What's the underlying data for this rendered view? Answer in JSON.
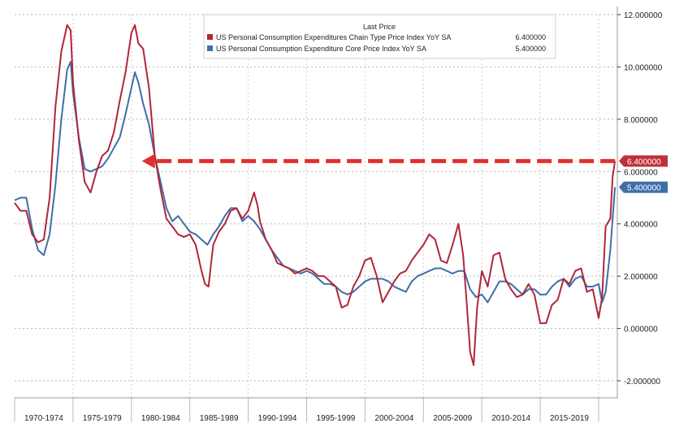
{
  "chart_data": {
    "type": "line",
    "title": "Last Price",
    "xlabel": "",
    "ylabel": "",
    "ylim": [
      -2,
      12
    ],
    "xlim": [
      1970,
      2021.6
    ],
    "grid": true,
    "legend_position": "top-right",
    "y_ticks": [
      {
        "value": 12,
        "label": "12.000000"
      },
      {
        "value": 10,
        "label": "10.000000"
      },
      {
        "value": 8,
        "label": "8.000000"
      },
      {
        "value": 6,
        "label": "6.000000"
      },
      {
        "value": 4,
        "label": "4.000000"
      },
      {
        "value": 2,
        "label": "2.000000"
      },
      {
        "value": 0,
        "label": "0.000000"
      },
      {
        "value": -2,
        "label": "-2.000000"
      }
    ],
    "x_categories": [
      "1970-1974",
      "1975-1979",
      "1980-1984",
      "1985-1989",
      "1990-1994",
      "1995-1999",
      "2000-2004",
      "2005-2009",
      "2010-2014",
      "2015-2019"
    ],
    "x_category_starts": [
      1970,
      1975,
      1980,
      1985,
      1990,
      1995,
      2000,
      2005,
      2010,
      2015,
      2020
    ],
    "annotation": {
      "type": "dashed-arrow",
      "y": 6.4,
      "from_x": 2021.4,
      "to_x": 1980.9,
      "color": "#e03030"
    },
    "series": [
      {
        "name": "US Personal Consumption Expenditures Chain Type Price Index YoY SA",
        "last_value": "6.400000",
        "color": "#b0263a",
        "x": [
          1970,
          1970.5,
          1971,
          1971.5,
          1972,
          1972.5,
          1973,
          1973.5,
          1974,
          1974.5,
          1974.8,
          1975,
          1975.5,
          1976,
          1976.5,
          1977,
          1977.5,
          1978,
          1978.5,
          1979,
          1979.5,
          1980,
          1980.3,
          1980.6,
          1981,
          1981.5,
          1982,
          1982.5,
          1983,
          1983.5,
          1984,
          1984.5,
          1985,
          1985.5,
          1986,
          1986.3,
          1986.6,
          1987,
          1987.5,
          1988,
          1988.5,
          1989,
          1989.5,
          1990,
          1990.5,
          1990.8,
          1991,
          1991.5,
          1992,
          1992.5,
          1993,
          1993.5,
          1994,
          1994.5,
          1995,
          1995.5,
          1996,
          1996.5,
          1997,
          1997.5,
          1998,
          1998.5,
          1999,
          1999.5,
          2000,
          2000.5,
          2001,
          2001.5,
          2002,
          2002.5,
          2003,
          2003.5,
          2004,
          2004.5,
          2005,
          2005.5,
          2006,
          2006.5,
          2007,
          2007.5,
          2008,
          2008.4,
          2008.7,
          2009,
          2009.3,
          2009.6,
          2010,
          2010.5,
          2011,
          2011.5,
          2012,
          2012.5,
          2013,
          2013.5,
          2014,
          2014.5,
          2015,
          2015.5,
          2016,
          2016.5,
          2017,
          2017.5,
          2018,
          2018.5,
          2019,
          2019.5,
          2020,
          2020.3,
          2020.6,
          2021,
          2021.2,
          2021.4
        ],
        "values": [
          4.8,
          4.5,
          4.5,
          3.6,
          3.3,
          3.4,
          5.0,
          8.5,
          10.6,
          11.6,
          11.4,
          9.4,
          7.2,
          5.6,
          5.2,
          6.0,
          6.6,
          6.8,
          7.5,
          8.7,
          9.8,
          11.3,
          11.6,
          10.9,
          10.7,
          9.2,
          6.6,
          5.3,
          4.2,
          3.9,
          3.6,
          3.5,
          3.6,
          3.2,
          2.2,
          1.7,
          1.6,
          3.2,
          3.7,
          4.0,
          4.5,
          4.6,
          4.2,
          4.5,
          5.2,
          4.7,
          4.1,
          3.4,
          3.0,
          2.5,
          2.4,
          2.3,
          2.1,
          2.2,
          2.3,
          2.2,
          2.0,
          2.0,
          1.8,
          1.6,
          0.8,
          0.9,
          1.6,
          2.0,
          2.6,
          2.7,
          2.0,
          1.0,
          1.4,
          1.8,
          2.1,
          2.2,
          2.6,
          2.9,
          3.2,
          3.6,
          3.4,
          2.6,
          2.5,
          3.2,
          4.0,
          2.8,
          1.0,
          -0.9,
          -1.4,
          0.8,
          2.2,
          1.6,
          2.8,
          2.9,
          1.9,
          1.5,
          1.2,
          1.3,
          1.7,
          1.3,
          0.2,
          0.2,
          0.9,
          1.1,
          1.9,
          1.7,
          2.2,
          2.3,
          1.4,
          1.5,
          0.4,
          1.2,
          3.9,
          4.2,
          5.8,
          6.4
        ]
      },
      {
        "name": "US Personal Consumption Expenditure Core Price Index YoY SA",
        "last_value": "5.400000",
        "color": "#3f6ea8",
        "x": [
          1970,
          1970.5,
          1971,
          1971.5,
          1972,
          1972.5,
          1973,
          1973.5,
          1974,
          1974.5,
          1974.8,
          1975,
          1975.5,
          1976,
          1976.5,
          1977,
          1977.5,
          1978,
          1978.5,
          1979,
          1979.5,
          1980,
          1980.3,
          1980.6,
          1981,
          1981.5,
          1982,
          1982.5,
          1983,
          1983.5,
          1984,
          1984.5,
          1985,
          1985.5,
          1986,
          1986.5,
          1987,
          1987.5,
          1988,
          1988.5,
          1989,
          1989.5,
          1990,
          1990.5,
          1991,
          1991.5,
          1992,
          1992.5,
          1993,
          1993.5,
          1994,
          1994.5,
          1995,
          1995.5,
          1996,
          1996.5,
          1997,
          1997.5,
          1998,
          1998.5,
          1999,
          1999.5,
          2000,
          2000.5,
          2001,
          2001.5,
          2002,
          2002.5,
          2003,
          2003.5,
          2004,
          2004.5,
          2005,
          2005.5,
          2006,
          2006.5,
          2007,
          2007.5,
          2008,
          2008.5,
          2009,
          2009.5,
          2010,
          2010.5,
          2011,
          2011.5,
          2012,
          2012.5,
          2013,
          2013.5,
          2014,
          2014.5,
          2015,
          2015.5,
          2016,
          2016.5,
          2017,
          2017.5,
          2018,
          2018.5,
          2019,
          2019.5,
          2020,
          2020.3,
          2020.6,
          2021,
          2021.2,
          2021.4
        ],
        "values": [
          4.9,
          5.0,
          5.0,
          3.8,
          3.0,
          2.8,
          3.6,
          5.5,
          8.0,
          9.9,
          10.2,
          9.0,
          7.3,
          6.1,
          6.0,
          6.1,
          6.2,
          6.5,
          6.9,
          7.3,
          8.2,
          9.2,
          9.8,
          9.4,
          8.6,
          7.8,
          6.6,
          5.6,
          4.6,
          4.1,
          4.3,
          4.0,
          3.7,
          3.6,
          3.4,
          3.2,
          3.6,
          3.9,
          4.3,
          4.6,
          4.6,
          4.1,
          4.3,
          4.1,
          3.8,
          3.4,
          3.0,
          2.7,
          2.4,
          2.3,
          2.2,
          2.1,
          2.2,
          2.1,
          1.9,
          1.7,
          1.7,
          1.6,
          1.4,
          1.3,
          1.4,
          1.6,
          1.8,
          1.9,
          1.9,
          1.9,
          1.8,
          1.6,
          1.5,
          1.4,
          1.8,
          2.0,
          2.1,
          2.2,
          2.3,
          2.3,
          2.2,
          2.1,
          2.2,
          2.2,
          1.5,
          1.2,
          1.3,
          1.0,
          1.4,
          1.8,
          1.8,
          1.7,
          1.5,
          1.3,
          1.5,
          1.5,
          1.3,
          1.3,
          1.6,
          1.8,
          1.9,
          1.6,
          1.9,
          2.0,
          1.6,
          1.6,
          1.7,
          1.0,
          1.4,
          3.0,
          4.2,
          5.4
        ]
      }
    ],
    "badges": [
      {
        "label": "6.400000",
        "value": 6.4,
        "color": "#c0303a"
      },
      {
        "label": "5.400000",
        "value": 5.4,
        "color": "#3f6ea8"
      }
    ]
  }
}
